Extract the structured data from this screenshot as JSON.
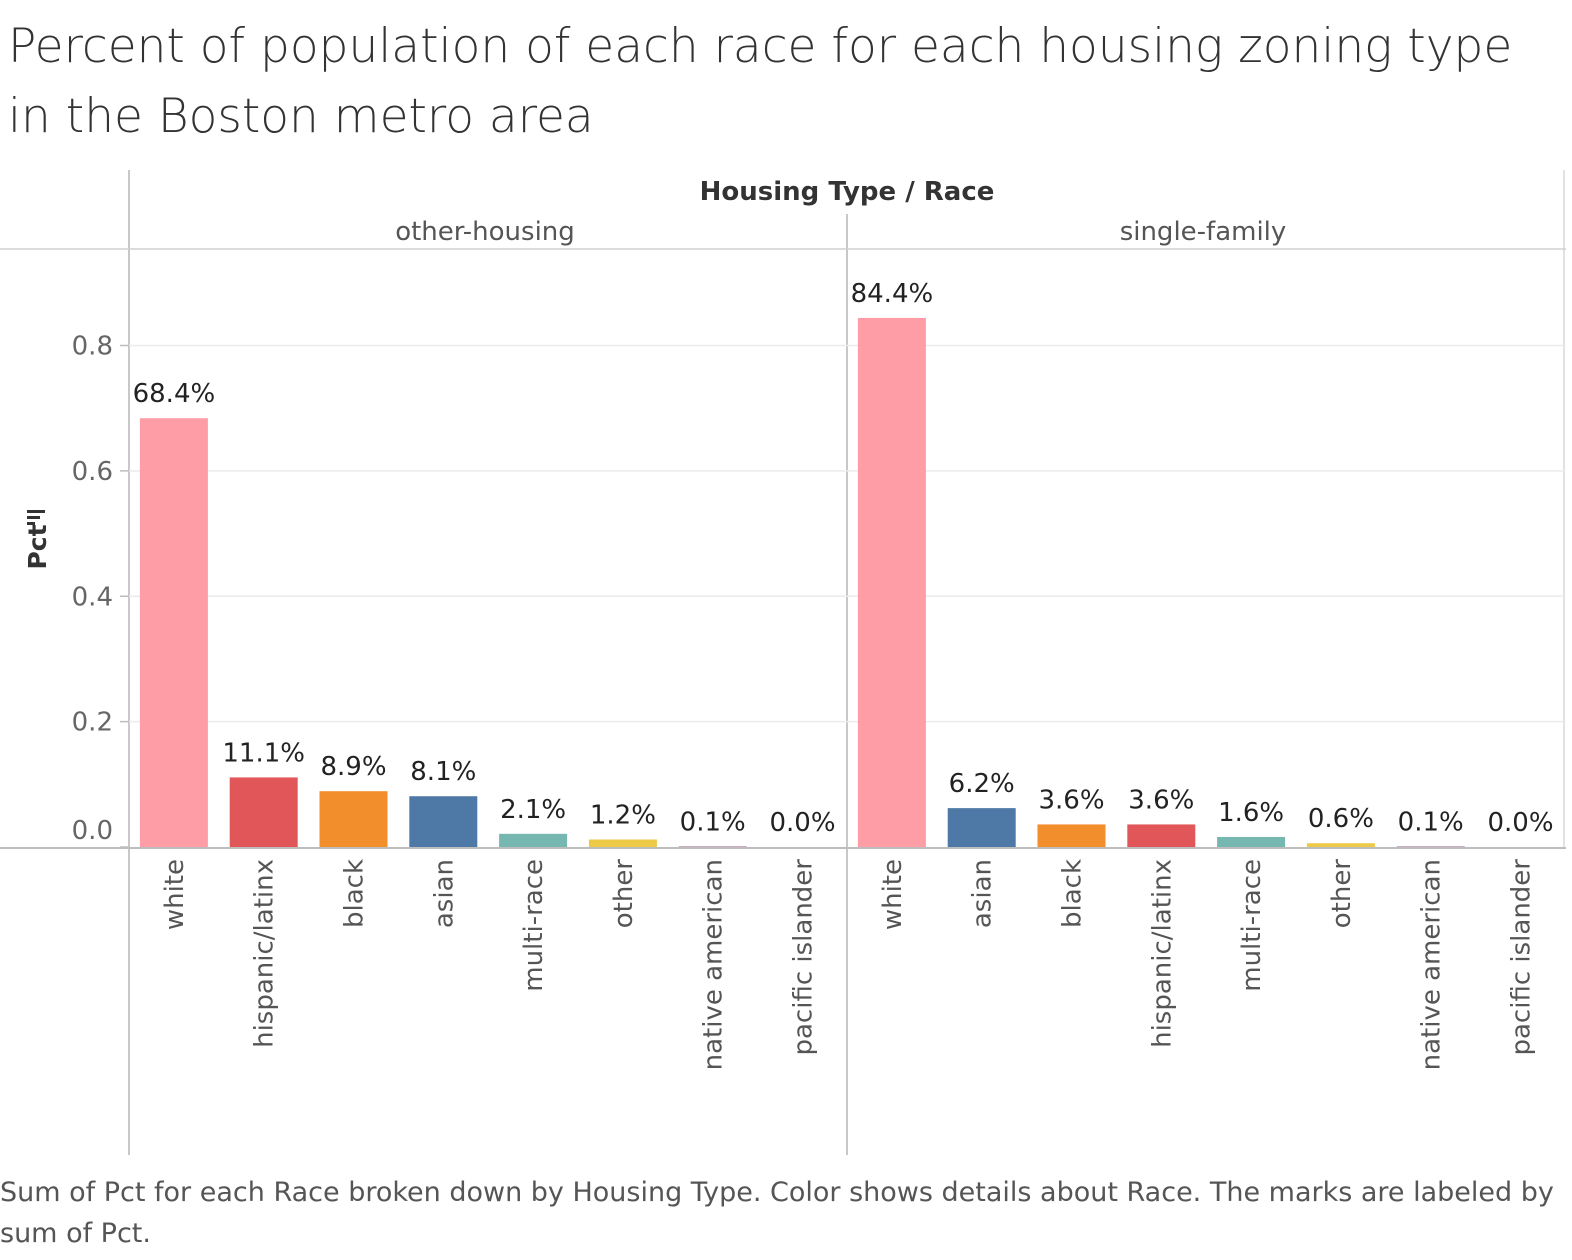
{
  "title": "Percent of population of each race for each housing zoning type in the Boston metro area",
  "caption": "Sum of Pct for each Race broken down by Housing Type.  Color shows details about Race.  The marks are labeled by sum of Pct.",
  "header": {
    "title": "Housing Type  /  Race"
  },
  "sort_icon": "sort-descending-icon",
  "chart_data": {
    "type": "bar",
    "ylabel": "Pct",
    "ylim": [
      0,
      0.95
    ],
    "yticks": [
      0.0,
      0.2,
      0.4,
      0.6,
      0.8
    ],
    "ytick_labels": [
      "0.0",
      "0.2",
      "0.4",
      "0.6",
      "0.8"
    ],
    "grid": true,
    "colors": {
      "white": "#ff9da7",
      "hispanic/latinx": "#e15759",
      "black": "#f28e2b",
      "asian": "#4e79a7",
      "multi-race": "#76b7b2",
      "other": "#edc948",
      "native american": "#b07aa1",
      "pacific islander": "#9c755f"
    },
    "panes": [
      {
        "name": "other-housing",
        "categories": [
          "white",
          "hispanic/latinx",
          "black",
          "asian",
          "multi-race",
          "other",
          "native american",
          "pacific islander"
        ],
        "values": [
          0.684,
          0.111,
          0.089,
          0.081,
          0.021,
          0.012,
          0.001,
          0.0
        ],
        "labels": [
          "68.4%",
          "11.1%",
          "8.9%",
          "8.1%",
          "2.1%",
          "1.2%",
          "0.1%",
          "0.0%"
        ]
      },
      {
        "name": "single-family",
        "categories": [
          "white",
          "asian",
          "black",
          "hispanic/latinx",
          "multi-race",
          "other",
          "native american",
          "pacific islander"
        ],
        "values": [
          0.844,
          0.062,
          0.036,
          0.036,
          0.016,
          0.006,
          0.001,
          0.0
        ],
        "labels": [
          "84.4%",
          "6.2%",
          "3.6%",
          "3.6%",
          "1.6%",
          "0.6%",
          "0.1%",
          "0.0%"
        ]
      }
    ]
  }
}
